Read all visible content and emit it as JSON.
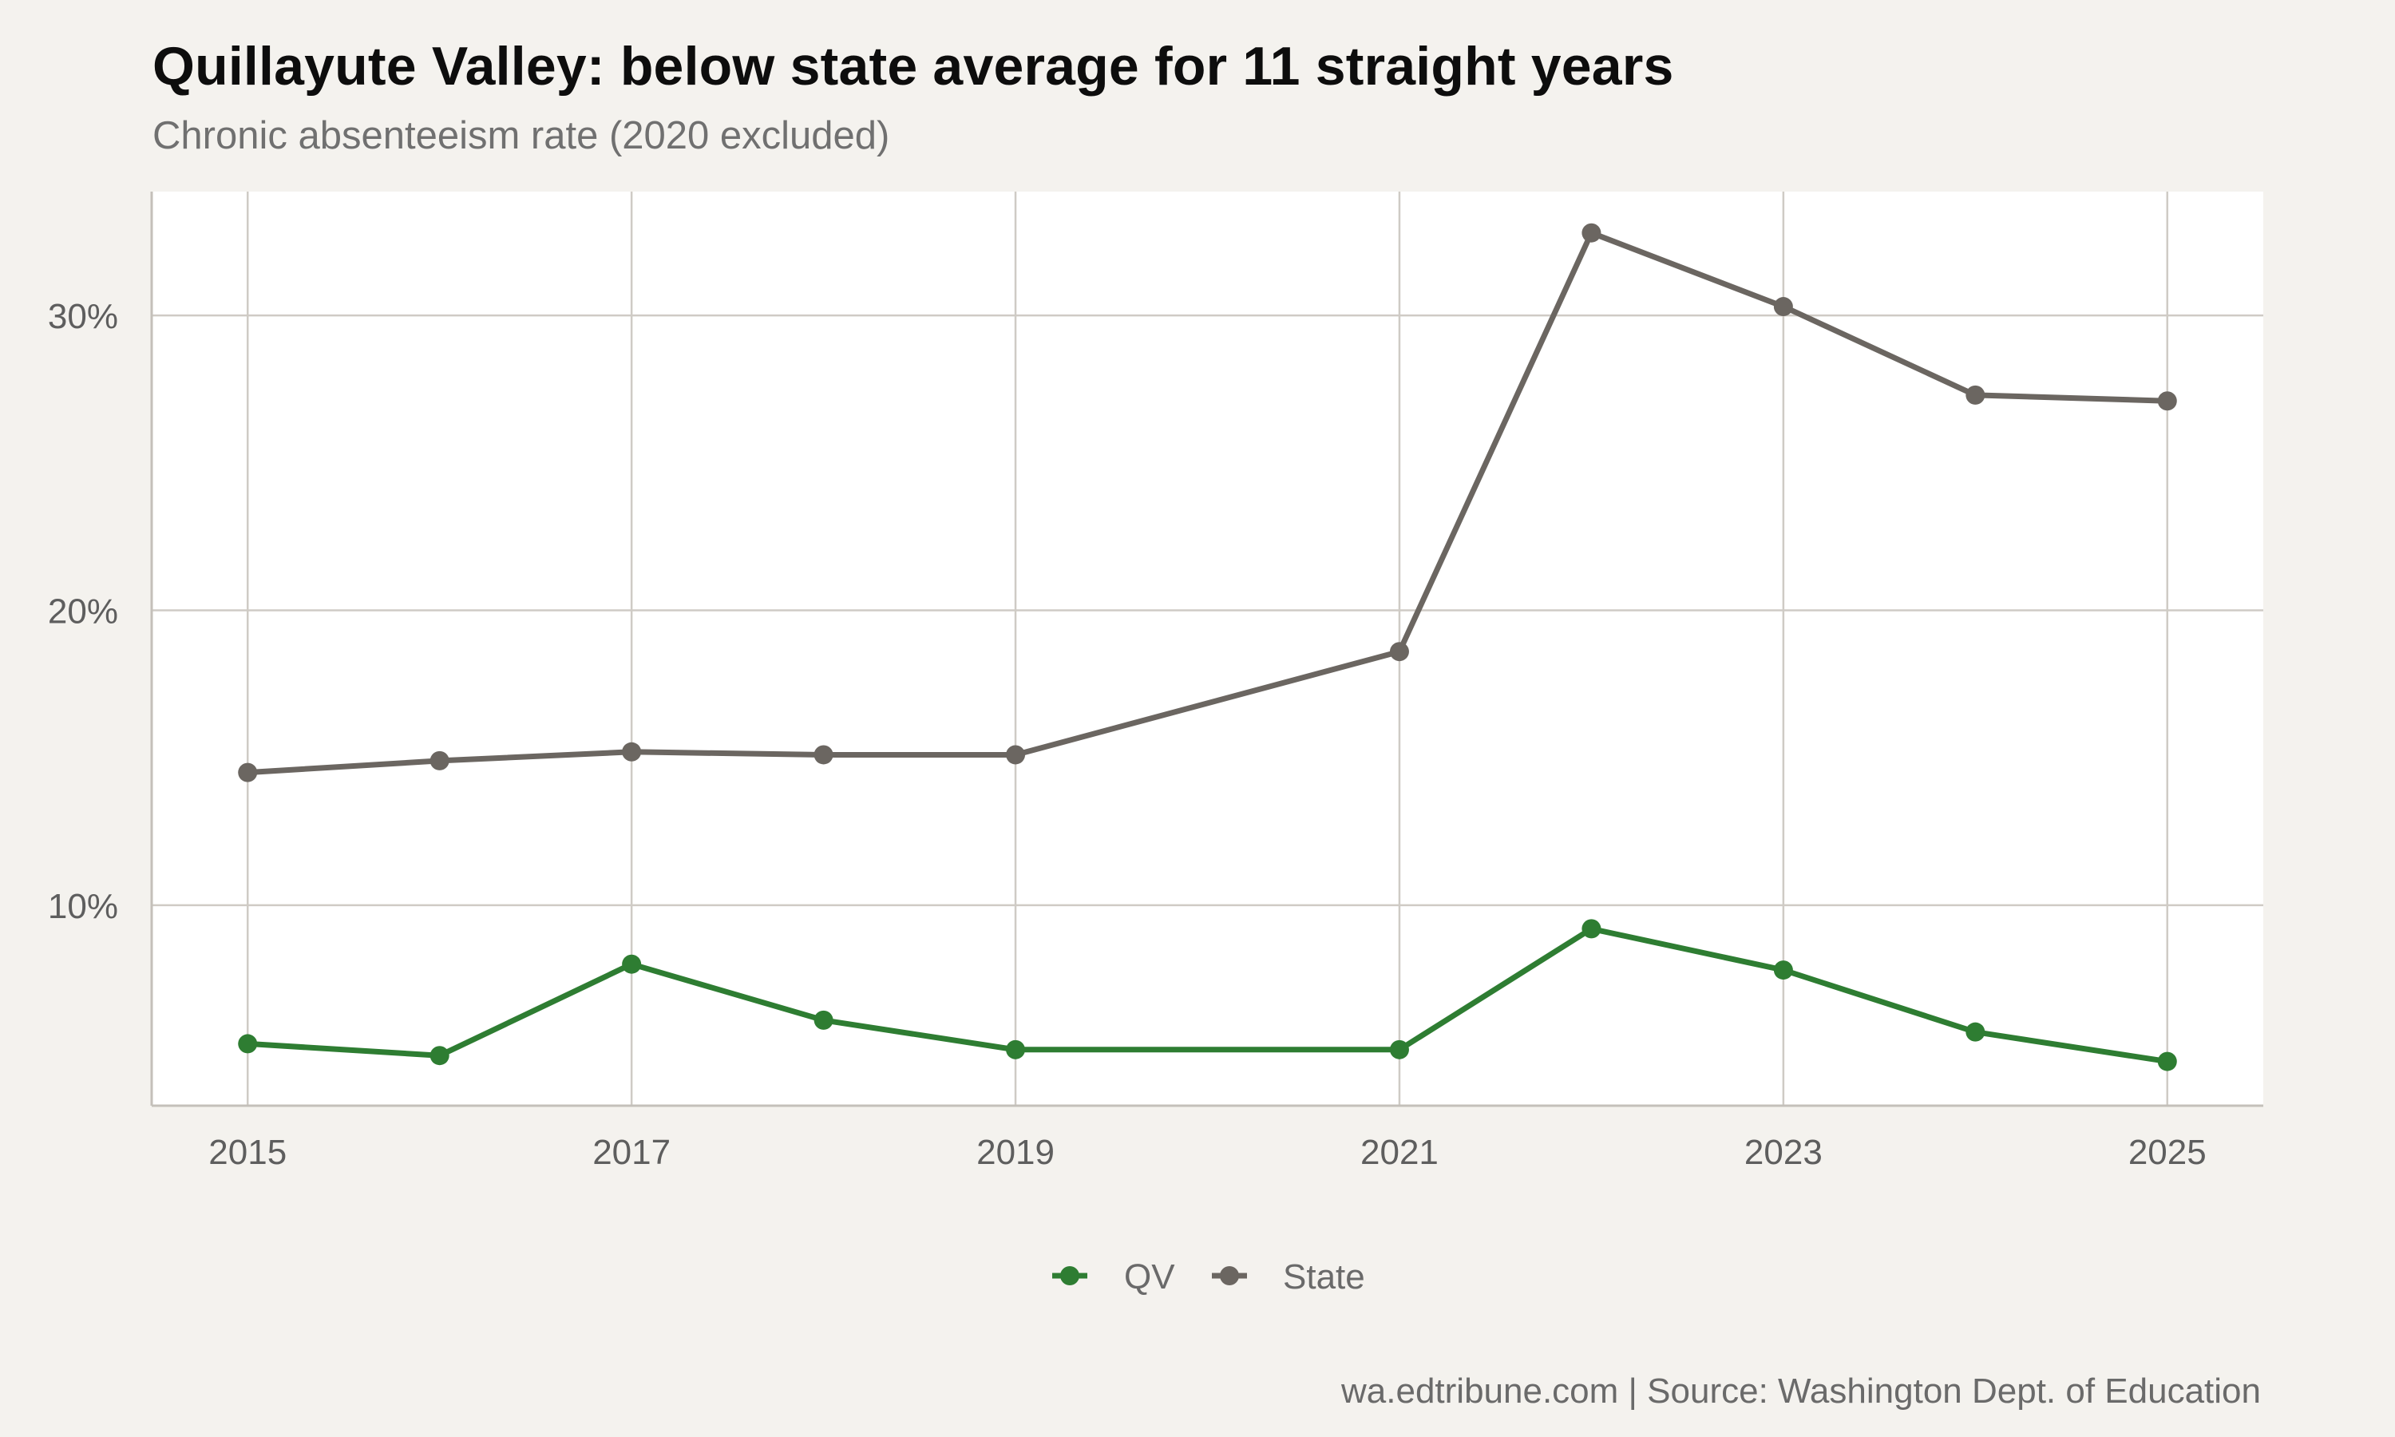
{
  "chart_data": {
    "type": "line",
    "title": "Quillayute Valley: below state average for 11 straight years",
    "subtitle": "Chronic absenteeism rate (2020 excluded)",
    "xlabel": "",
    "ylabel": "",
    "x": [
      2015,
      2016,
      2017,
      2018,
      2019,
      2021,
      2022,
      2023,
      2024,
      2025
    ],
    "xlim": [
      2014.5,
      2025.5
    ],
    "ylim": [
      3.2,
      34.2
    ],
    "x_ticks": [
      2015,
      2017,
      2019,
      2021,
      2023,
      2025
    ],
    "x_tick_labels": [
      "2015",
      "2017",
      "2019",
      "2021",
      "2023",
      "2025"
    ],
    "y_ticks": [
      10,
      20,
      30
    ],
    "y_tick_labels": [
      "10%",
      "20%",
      "30%"
    ],
    "grid": true,
    "legend_position": "bottom",
    "series": [
      {
        "name": "QV",
        "color": "#2e7d32",
        "values": [
          5.3,
          4.9,
          8.0,
          6.1,
          5.1,
          5.1,
          9.2,
          7.8,
          5.7,
          4.7
        ]
      },
      {
        "name": "State",
        "color": "#6b6661",
        "values": [
          14.5,
          14.9,
          15.2,
          15.1,
          15.1,
          18.6,
          32.8,
          30.3,
          27.3,
          27.1
        ]
      }
    ]
  },
  "caption": "wa.edtribune.com | Source: Washington Dept. of Education"
}
